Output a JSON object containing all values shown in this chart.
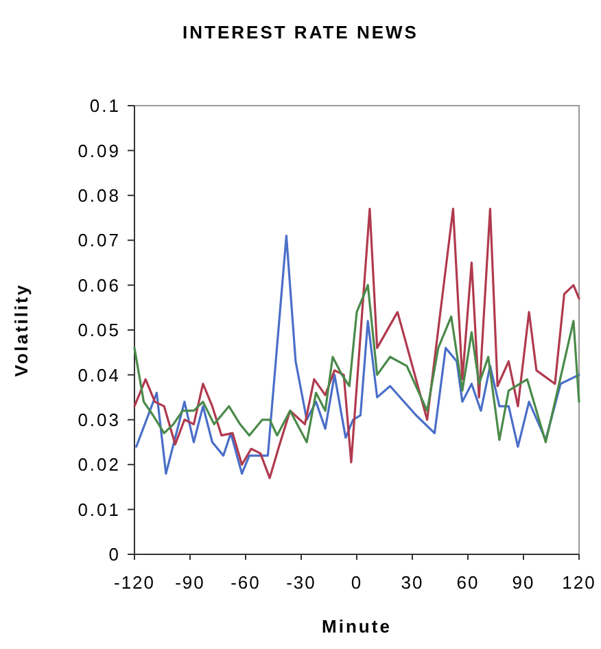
{
  "chart_data": {
    "type": "line",
    "title": "INTEREST RATE NEWS",
    "xlabel": "Minute",
    "ylabel": "Volatility",
    "xlim": [
      -120,
      120
    ],
    "xticks": [
      -120,
      -90,
      -60,
      -30,
      0,
      30,
      60,
      90,
      120
    ],
    "ylim": [
      0,
      0.1
    ],
    "yticks": [
      0,
      0.01,
      0.02,
      0.03,
      0.04,
      0.05,
      0.06,
      0.07,
      0.08,
      0.09,
      0.1
    ],
    "grid": false,
    "marker": "none",
    "line_style": "solid",
    "series": [
      {
        "color": "#4a6fc8",
        "x": [
          -119,
          -108,
          -103,
          -93,
          -88,
          -83,
          -78,
          -72,
          -68,
          -62,
          -58,
          -48,
          -38,
          -33,
          -27,
          -22,
          -17,
          -12,
          -6,
          -2,
          2,
          6,
          11,
          18,
          32,
          42,
          48,
          54,
          57,
          62,
          67,
          72,
          77,
          82,
          87,
          93,
          102,
          110,
          120
        ],
        "values": [
          0.024,
          0.036,
          0.018,
          0.034,
          0.025,
          0.033,
          0.025,
          0.022,
          0.027,
          0.018,
          0.022,
          0.022,
          0.071,
          0.043,
          0.03,
          0.034,
          0.028,
          0.04,
          0.026,
          0.03,
          0.031,
          0.052,
          0.035,
          0.0375,
          0.031,
          0.027,
          0.046,
          0.043,
          0.034,
          0.038,
          0.032,
          0.042,
          0.033,
          0.033,
          0.024,
          0.034,
          0.0255,
          0.038,
          0.04
        ]
      },
      {
        "color": "#b03a4e",
        "x": [
          -120,
          -114,
          -109,
          -104,
          -98,
          -93,
          -88,
          -83,
          -78,
          -73,
          -67,
          -62,
          -57,
          -52,
          -47,
          -42,
          -36,
          -28,
          -23,
          -17,
          -12,
          -7,
          -3,
          7,
          11,
          22,
          38,
          52,
          57,
          62,
          66,
          72,
          76,
          82,
          87,
          93,
          97,
          107,
          112,
          117,
          120
        ],
        "values": [
          0.033,
          0.039,
          0.034,
          0.033,
          0.0245,
          0.03,
          0.029,
          0.038,
          0.033,
          0.0265,
          0.027,
          0.02,
          0.0235,
          0.0225,
          0.017,
          0.024,
          0.032,
          0.029,
          0.039,
          0.0355,
          0.041,
          0.04,
          0.0205,
          0.077,
          0.046,
          0.054,
          0.03,
          0.077,
          0.039,
          0.065,
          0.035,
          0.077,
          0.0375,
          0.043,
          0.033,
          0.054,
          0.041,
          0.038,
          0.058,
          0.06,
          0.057
        ]
      },
      {
        "color": "#4a8a4a",
        "x": [
          -120,
          -115,
          -110,
          -104,
          -99,
          -94,
          -88,
          -83,
          -77,
          -69,
          -63,
          -58,
          -51,
          -47,
          -43,
          -36,
          -27,
          -22,
          -17,
          -13,
          -8,
          -4,
          0,
          6,
          11,
          18,
          27,
          38,
          44,
          51,
          57,
          62,
          66,
          71,
          77,
          82,
          92,
          102,
          117,
          120
        ],
        "values": [
          0.046,
          0.034,
          0.031,
          0.027,
          0.029,
          0.032,
          0.032,
          0.034,
          0.029,
          0.033,
          0.029,
          0.0265,
          0.03,
          0.03,
          0.0265,
          0.032,
          0.025,
          0.036,
          0.032,
          0.044,
          0.04,
          0.0375,
          0.054,
          0.06,
          0.04,
          0.044,
          0.042,
          0.032,
          0.046,
          0.053,
          0.0365,
          0.0495,
          0.038,
          0.044,
          0.0255,
          0.0365,
          0.039,
          0.025,
          0.052,
          0.034
        ]
      }
    ]
  }
}
